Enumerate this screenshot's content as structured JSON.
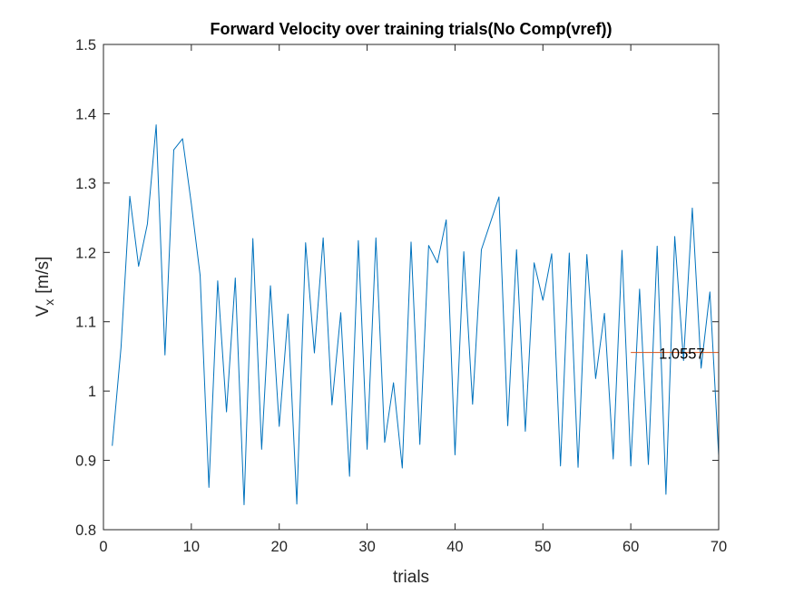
{
  "chart_data": {
    "type": "line",
    "title": "Forward Velocity over training trials(No Comp(vref))",
    "xlabel": "trials",
    "ylabel_main": "V",
    "ylabel_sub": "x",
    "ylabel_unit": "[m/s]",
    "xlim": [
      0,
      70
    ],
    "ylim": [
      0.8,
      1.5
    ],
    "x_ticks": [
      "0",
      "10",
      "20",
      "30",
      "40",
      "50",
      "60",
      "70"
    ],
    "y_ticks": [
      "0.8",
      "0.9",
      "1",
      "1.1",
      "1.2",
      "1.3",
      "1.4",
      "1.5"
    ],
    "grid": false,
    "series": [
      {
        "color": "#0072BD",
        "x": [
          1,
          2,
          3,
          4,
          5,
          6,
          7,
          8,
          9,
          10,
          11,
          12,
          13,
          14,
          15,
          16,
          17,
          18,
          19,
          20,
          21,
          22,
          23,
          24,
          25,
          26,
          27,
          28,
          29,
          30,
          31,
          32,
          33,
          34,
          35,
          36,
          37,
          38,
          39,
          40,
          41,
          42,
          43,
          44,
          45,
          46,
          47,
          48,
          49,
          50,
          51,
          52,
          53,
          54,
          55,
          56,
          57,
          58,
          59,
          60,
          61,
          62,
          63,
          64,
          65,
          66,
          67,
          68,
          69,
          70
        ],
        "values": [
          0.921,
          1.063,
          1.281,
          1.18,
          1.241,
          1.384,
          1.052,
          1.348,
          1.364,
          1.27,
          1.167,
          0.861,
          1.159,
          0.97,
          1.163,
          0.836,
          1.22,
          0.916,
          1.152,
          0.949,
          1.111,
          0.837,
          1.214,
          1.055,
          1.221,
          0.98,
          1.113,
          0.877,
          1.217,
          0.916,
          1.221,
          0.926,
          1.012,
          0.889,
          1.215,
          0.923,
          1.21,
          1.185,
          1.247,
          0.908,
          1.201,
          0.981,
          1.204,
          1.242,
          1.28,
          0.95,
          1.204,
          0.942,
          1.185,
          1.131,
          1.198,
          0.892,
          1.199,
          0.89,
          1.197,
          1.018,
          1.112,
          0.902,
          1.203,
          0.892,
          1.147,
          0.894,
          1.209,
          0.851,
          1.223,
          1.044,
          1.264,
          1.033,
          1.143,
          0.907
        ]
      }
    ],
    "reference_line": {
      "color": "#D95319",
      "x_start": 60,
      "x_end": 70,
      "value": 1.0557,
      "label": "1.0557"
    }
  }
}
